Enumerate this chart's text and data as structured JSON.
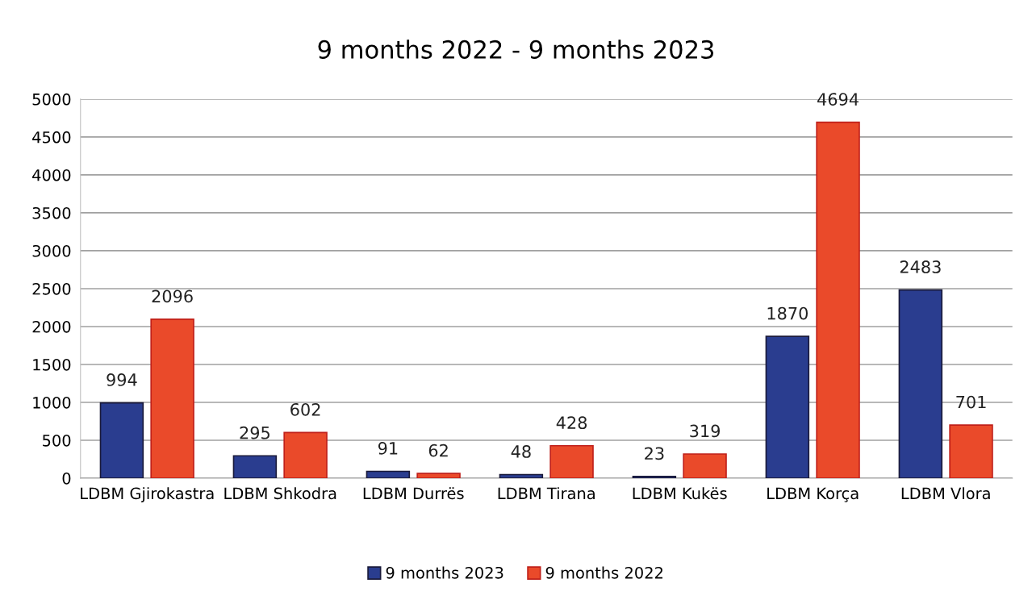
{
  "chart_data": {
    "type": "bar",
    "title": "9 months 2022 - 9 months 2023",
    "categories": [
      "LDBM Gjirokastra",
      "LDBM Shkodra",
      "LDBM Durrës",
      "LDBM Tirana",
      "LDBM Kukës",
      "LDBM Korça",
      "LDBM Vlora"
    ],
    "series": [
      {
        "name": "9 months 2023",
        "color": "#2a3d8f",
        "values": [
          994,
          295,
          91,
          48,
          23,
          1870,
          2483
        ]
      },
      {
        "name": "9 months 2022",
        "color": "#ea4a2a",
        "values": [
          2096,
          602,
          62,
          428,
          319,
          4694,
          701
        ]
      }
    ],
    "ylim": [
      0,
      5000
    ],
    "yticks": [
      0,
      500,
      1000,
      1500,
      2000,
      2500,
      3000,
      3500,
      4000,
      4500,
      5000
    ],
    "grid": "y",
    "legend": "bottom",
    "data_labels": true
  }
}
